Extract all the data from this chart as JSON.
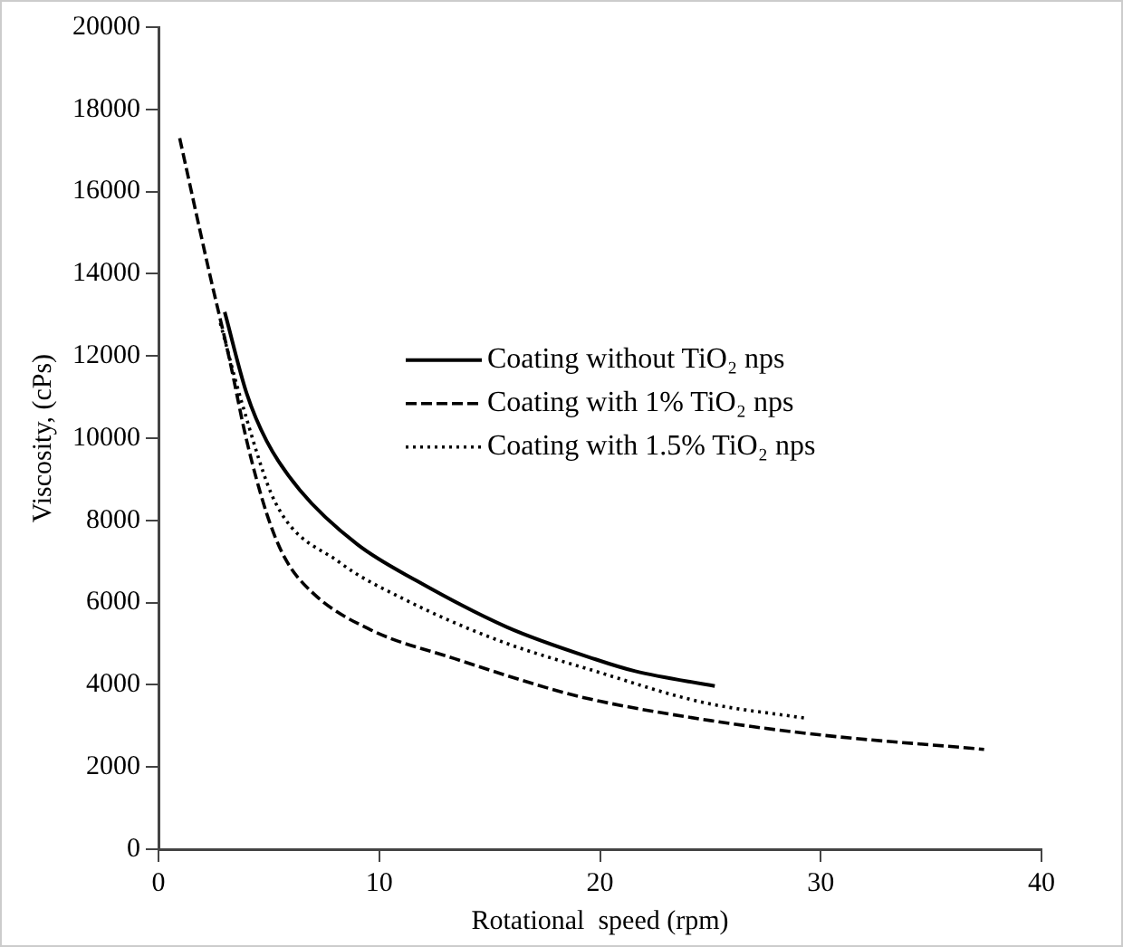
{
  "chart_data": {
    "type": "line",
    "xlabel": "Rotational  speed (rpm)",
    "ylabel": "Viscosity, (cPs)",
    "xlim": [
      0,
      40
    ],
    "xticks": [
      0,
      10,
      20,
      30,
      40
    ],
    "ylim": [
      0,
      20000
    ],
    "yticks": [
      0,
      2000,
      4000,
      6000,
      8000,
      10000,
      12000,
      14000,
      16000,
      18000,
      20000
    ],
    "grid": false,
    "legend": "right",
    "marker": "none",
    "series": [
      {
        "name": "Coating without TiO₂ nps",
        "color": "#000000",
        "line_style": "solid",
        "x": [
          3.0,
          4.0,
          4.9,
          6.4,
          9.0,
          11.7,
          15.8,
          19.8,
          21.6,
          25.2
        ],
        "values": [
          13070,
          11080,
          9930,
          8740,
          7420,
          6530,
          5400,
          4620,
          4330,
          3970
        ]
      },
      {
        "name": "Coating with 1% TiO₂ nps",
        "color": "#000000",
        "line_style": "dashed",
        "x": [
          0.96,
          2.3,
          3.2,
          4.0,
          4.9,
          5.7,
          7.0,
          9.6,
          13.4,
          18.1,
          20,
          25,
          30,
          37.4
        ],
        "values": [
          17300,
          14040,
          11960,
          9930,
          8170,
          7110,
          6230,
          5340,
          4640,
          3850,
          3600,
          3130,
          2780,
          2430
        ]
      },
      {
        "name": "Coating with 1.5% TiO₂ nps",
        "color": "#000000",
        "line_style": "dotted",
        "x": [
          2.8,
          3.8,
          5.3,
          8.2,
          11.1,
          15.4,
          19.8,
          24.6,
          29.4
        ],
        "values": [
          12800,
          10820,
          8430,
          6980,
          6090,
          5080,
          4330,
          3580,
          3180
        ]
      }
    ]
  }
}
